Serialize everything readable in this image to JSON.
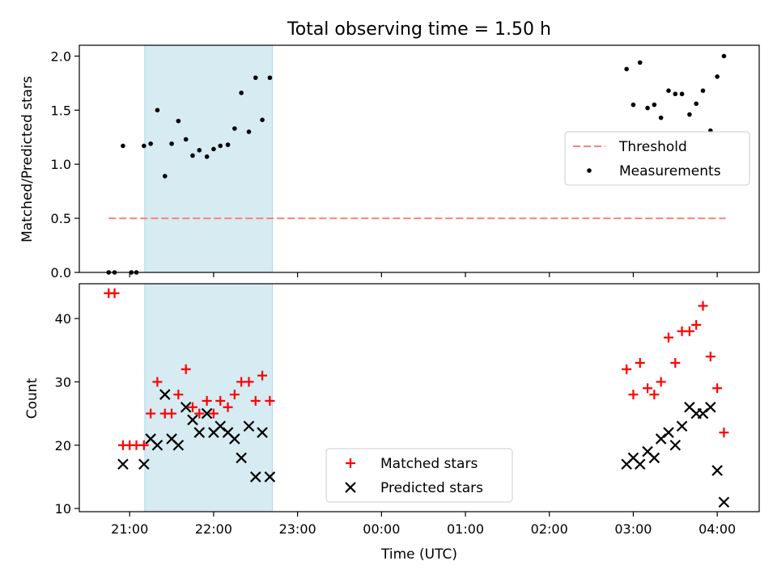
{
  "chart_data": [
    {
      "type": "scatter",
      "title": "Total observing time = 1.50 h",
      "ylabel": "Matched/Predicted stars",
      "xlabel": "",
      "x_axis": "time (UTC), hours after 00:00 of first night",
      "ylim": [
        0,
        2.1
      ],
      "yticks": [
        0.0,
        0.5,
        1.0,
        1.5,
        2.0
      ],
      "ytick_labels": [
        "0.0",
        "0.5",
        "1.0",
        "1.5",
        "2.0"
      ],
      "highlight_span": [
        21.18,
        22.7
      ],
      "legend_position": "center-right",
      "threshold": {
        "name": "Threshold",
        "y": 0.5,
        "x_range": [
          20.75,
          28.1
        ],
        "color": "#ff7f7f"
      },
      "series": [
        {
          "name": "Measurements",
          "color": "#000000",
          "points": [
            [
              20.75,
              0.0
            ],
            [
              20.82,
              0.0
            ],
            [
              20.92,
              1.17
            ],
            [
              21.02,
              0.0
            ],
            [
              21.08,
              0.0
            ],
            [
              21.17,
              1.17
            ],
            [
              21.25,
              1.19
            ],
            [
              21.33,
              1.5
            ],
            [
              21.42,
              0.89
            ],
            [
              21.5,
              1.19
            ],
            [
              21.58,
              1.4
            ],
            [
              21.67,
              1.23
            ],
            [
              21.75,
              1.08
            ],
            [
              21.83,
              1.13
            ],
            [
              21.92,
              1.07
            ],
            [
              22.0,
              1.14
            ],
            [
              22.08,
              1.17
            ],
            [
              22.17,
              1.18
            ],
            [
              22.25,
              1.33
            ],
            [
              22.33,
              1.66
            ],
            [
              22.42,
              1.3
            ],
            [
              22.5,
              1.8
            ],
            [
              22.58,
              1.41
            ],
            [
              22.67,
              1.8
            ],
            [
              26.92,
              1.88
            ],
            [
              27.0,
              1.55
            ],
            [
              27.08,
              1.94
            ],
            [
              27.17,
              1.52
            ],
            [
              27.25,
              1.55
            ],
            [
              27.33,
              1.43
            ],
            [
              27.42,
              1.68
            ],
            [
              27.5,
              1.65
            ],
            [
              27.58,
              1.65
            ],
            [
              27.67,
              1.46
            ],
            [
              27.75,
              1.56
            ],
            [
              27.83,
              1.68
            ],
            [
              27.92,
              1.31
            ],
            [
              28.0,
              1.81
            ],
            [
              28.08,
              2.0
            ]
          ]
        }
      ]
    },
    {
      "type": "scatter",
      "ylabel": "Count",
      "xlabel": "Time (UTC)",
      "xlim": [
        20.4,
        28.5
      ],
      "ylim": [
        9.5,
        45.5
      ],
      "yticks": [
        10,
        20,
        30,
        40
      ],
      "ytick_labels": [
        "10",
        "20",
        "30",
        "40"
      ],
      "xticks": [
        21,
        22,
        23,
        24,
        25,
        26,
        27,
        28
      ],
      "xtick_labels": [
        "21:00",
        "22:00",
        "23:00",
        "00:00",
        "01:00",
        "02:00",
        "03:00",
        "04:00"
      ],
      "highlight_span": [
        21.18,
        22.7
      ],
      "legend_position": "lower-center",
      "series": [
        {
          "name": "Matched stars",
          "marker": "plus",
          "color": "#ff0000",
          "points": [
            [
              20.75,
              44
            ],
            [
              20.82,
              44
            ],
            [
              20.92,
              20
            ],
            [
              21.0,
              20
            ],
            [
              21.08,
              20
            ],
            [
              21.17,
              20
            ],
            [
              21.25,
              25
            ],
            [
              21.33,
              30
            ],
            [
              21.42,
              25
            ],
            [
              21.5,
              25
            ],
            [
              21.58,
              28
            ],
            [
              21.67,
              32
            ],
            [
              21.75,
              26
            ],
            [
              21.83,
              25
            ],
            [
              21.92,
              27
            ],
            [
              22.0,
              25
            ],
            [
              22.08,
              27
            ],
            [
              22.17,
              26
            ],
            [
              22.25,
              28
            ],
            [
              22.33,
              30
            ],
            [
              22.42,
              30
            ],
            [
              22.5,
              27
            ],
            [
              22.58,
              31
            ],
            [
              22.67,
              27
            ],
            [
              26.92,
              32
            ],
            [
              27.0,
              28
            ],
            [
              27.08,
              33
            ],
            [
              27.17,
              29
            ],
            [
              27.25,
              28
            ],
            [
              27.33,
              30
            ],
            [
              27.42,
              37
            ],
            [
              27.5,
              33
            ],
            [
              27.58,
              38
            ],
            [
              27.67,
              38
            ],
            [
              27.75,
              39
            ],
            [
              27.83,
              42
            ],
            [
              27.92,
              34
            ],
            [
              28.0,
              29
            ],
            [
              28.08,
              22
            ]
          ]
        },
        {
          "name": "Predicted stars",
          "marker": "x",
          "color": "#000000",
          "points": [
            [
              20.92,
              17
            ],
            [
              21.17,
              17
            ],
            [
              21.25,
              21
            ],
            [
              21.33,
              20
            ],
            [
              21.42,
              28
            ],
            [
              21.5,
              21
            ],
            [
              21.58,
              20
            ],
            [
              21.67,
              26
            ],
            [
              21.75,
              24
            ],
            [
              21.83,
              22
            ],
            [
              21.92,
              25
            ],
            [
              22.0,
              22
            ],
            [
              22.08,
              23
            ],
            [
              22.17,
              22
            ],
            [
              22.25,
              21
            ],
            [
              22.33,
              18
            ],
            [
              22.42,
              23
            ],
            [
              22.5,
              15
            ],
            [
              22.58,
              22
            ],
            [
              22.67,
              15
            ],
            [
              26.92,
              17
            ],
            [
              27.0,
              18
            ],
            [
              27.08,
              17
            ],
            [
              27.17,
              19
            ],
            [
              27.25,
              18
            ],
            [
              27.33,
              21
            ],
            [
              27.42,
              22
            ],
            [
              27.5,
              20
            ],
            [
              27.58,
              23
            ],
            [
              27.67,
              26
            ],
            [
              27.75,
              25
            ],
            [
              27.83,
              25
            ],
            [
              27.92,
              26
            ],
            [
              28.0,
              16
            ],
            [
              28.08,
              11
            ]
          ]
        }
      ]
    }
  ],
  "colors": {
    "highlight": "#add8e6",
    "axes": "#000000"
  }
}
